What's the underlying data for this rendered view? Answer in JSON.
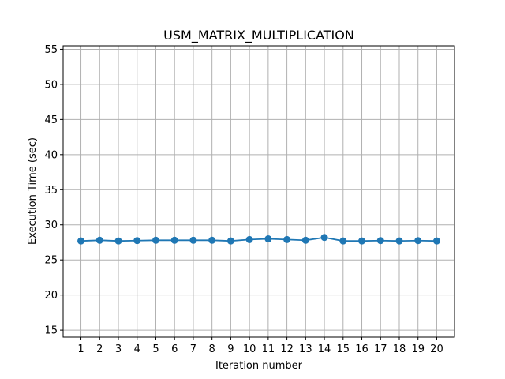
{
  "chart_data": {
    "type": "line",
    "title": "USM_MATRIX_MULTIPLICATION",
    "xlabel": "Iteration number",
    "ylabel": "Execution Time (sec)",
    "x": [
      1,
      2,
      3,
      4,
      5,
      6,
      7,
      8,
      9,
      10,
      11,
      12,
      13,
      14,
      15,
      16,
      17,
      18,
      19,
      20
    ],
    "x_tick_labels": [
      "1",
      "2",
      "3",
      "4",
      "5",
      "6",
      "7",
      "8",
      "9",
      "10",
      "11",
      "12",
      "13",
      "14",
      "15",
      "16",
      "17",
      "18",
      "19",
      "20"
    ],
    "y_ticks": [
      15,
      20,
      25,
      30,
      35,
      40,
      45,
      50,
      55
    ],
    "y_tick_labels": [
      "15",
      "20",
      "25",
      "30",
      "35",
      "40",
      "45",
      "50",
      "55"
    ],
    "series": [
      {
        "values": [
          27.7,
          27.8,
          27.7,
          27.75,
          27.8,
          27.8,
          27.8,
          27.8,
          27.7,
          27.9,
          28.0,
          27.9,
          27.8,
          28.2,
          27.7,
          27.7,
          27.75,
          27.7,
          27.75,
          27.7
        ],
        "color": "#1f77b4",
        "marker": "circle"
      }
    ],
    "xlim": [
      0.05,
      20.95
    ],
    "ylim": [
      14,
      55.5
    ],
    "grid": true
  }
}
